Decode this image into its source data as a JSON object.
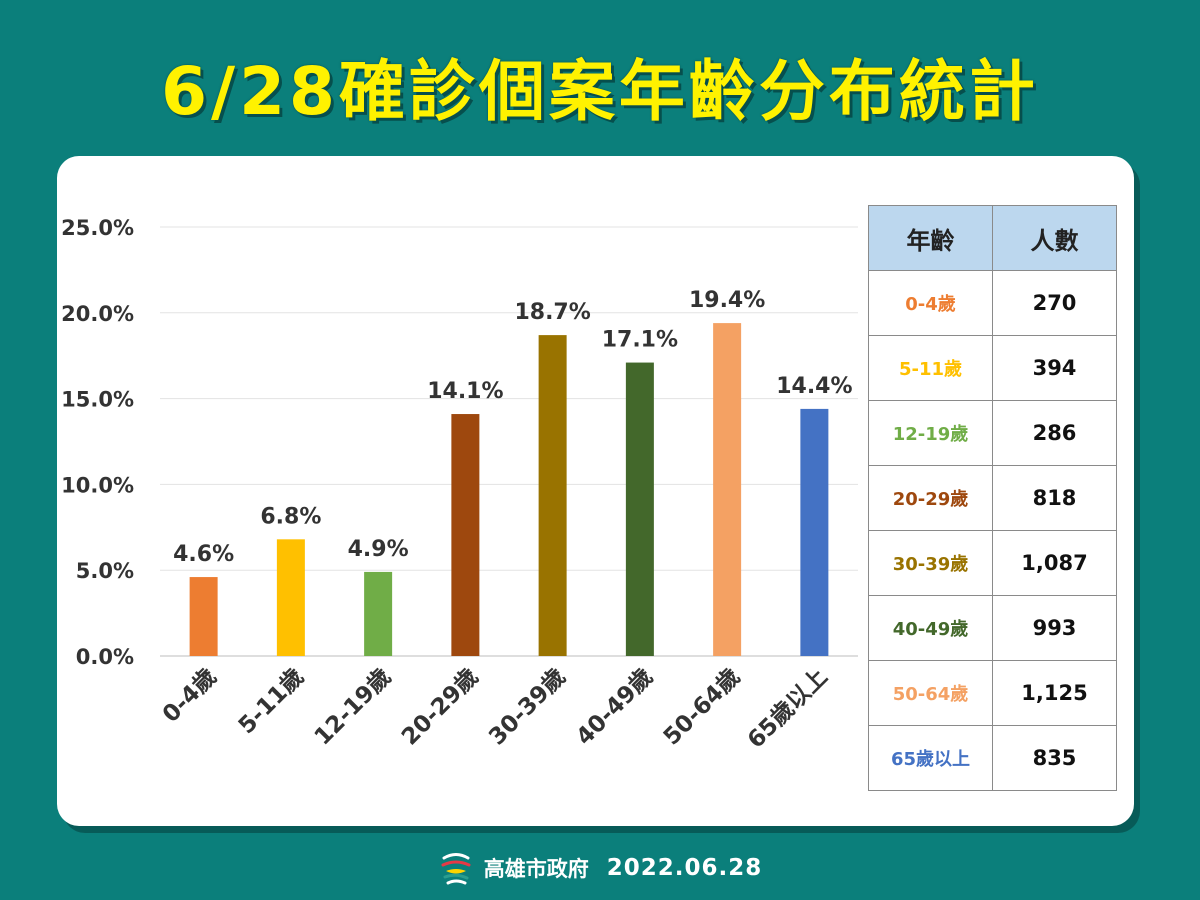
{
  "title": "6/28確診個案年齡分布統計",
  "chart_data": {
    "type": "bar",
    "categories": [
      "0-4歲",
      "5-11歲",
      "12-19歲",
      "20-29歲",
      "30-39歲",
      "40-49歲",
      "50-64歲",
      "65歲以上"
    ],
    "values": [
      4.6,
      6.8,
      4.9,
      14.1,
      18.7,
      17.1,
      19.4,
      14.4
    ],
    "data_labels": [
      "4.6%",
      "6.8%",
      "4.9%",
      "14.1%",
      "18.7%",
      "17.1%",
      "19.4%",
      "14.4%"
    ],
    "colors": [
      "#ed7d31",
      "#ffc000",
      "#70ad47",
      "#9e480e",
      "#997300",
      "#43682b",
      "#f4a163",
      "#4472c4"
    ],
    "y_ticks": [
      "0.0%",
      "5.0%",
      "10.0%",
      "15.0%",
      "20.0%",
      "25.0%"
    ],
    "ylim": [
      0,
      25
    ],
    "grid": true,
    "title": "",
    "xlabel": "",
    "ylabel": ""
  },
  "table": {
    "headers": [
      "年齡",
      "人數"
    ],
    "rows": [
      {
        "age": "0-4歲",
        "count": "270",
        "color": "#ed7d31"
      },
      {
        "age": "5-11歲",
        "count": "394",
        "color": "#ffc000"
      },
      {
        "age": "12-19歲",
        "count": "286",
        "color": "#70ad47"
      },
      {
        "age": "20-29歲",
        "count": "818",
        "color": "#9e480e"
      },
      {
        "age": "30-39歲",
        "count": "1,087",
        "color": "#997300"
      },
      {
        "age": "40-49歲",
        "count": "993",
        "color": "#43682b"
      },
      {
        "age": "50-64歲",
        "count": "1,125",
        "color": "#f4a163"
      },
      {
        "age": "65歲以上",
        "count": "835",
        "color": "#4472c4"
      }
    ]
  },
  "footer": {
    "org": "高雄市政府",
    "date": "2022.06.28",
    "logo_icon": "kaohsiung-logo-icon"
  }
}
